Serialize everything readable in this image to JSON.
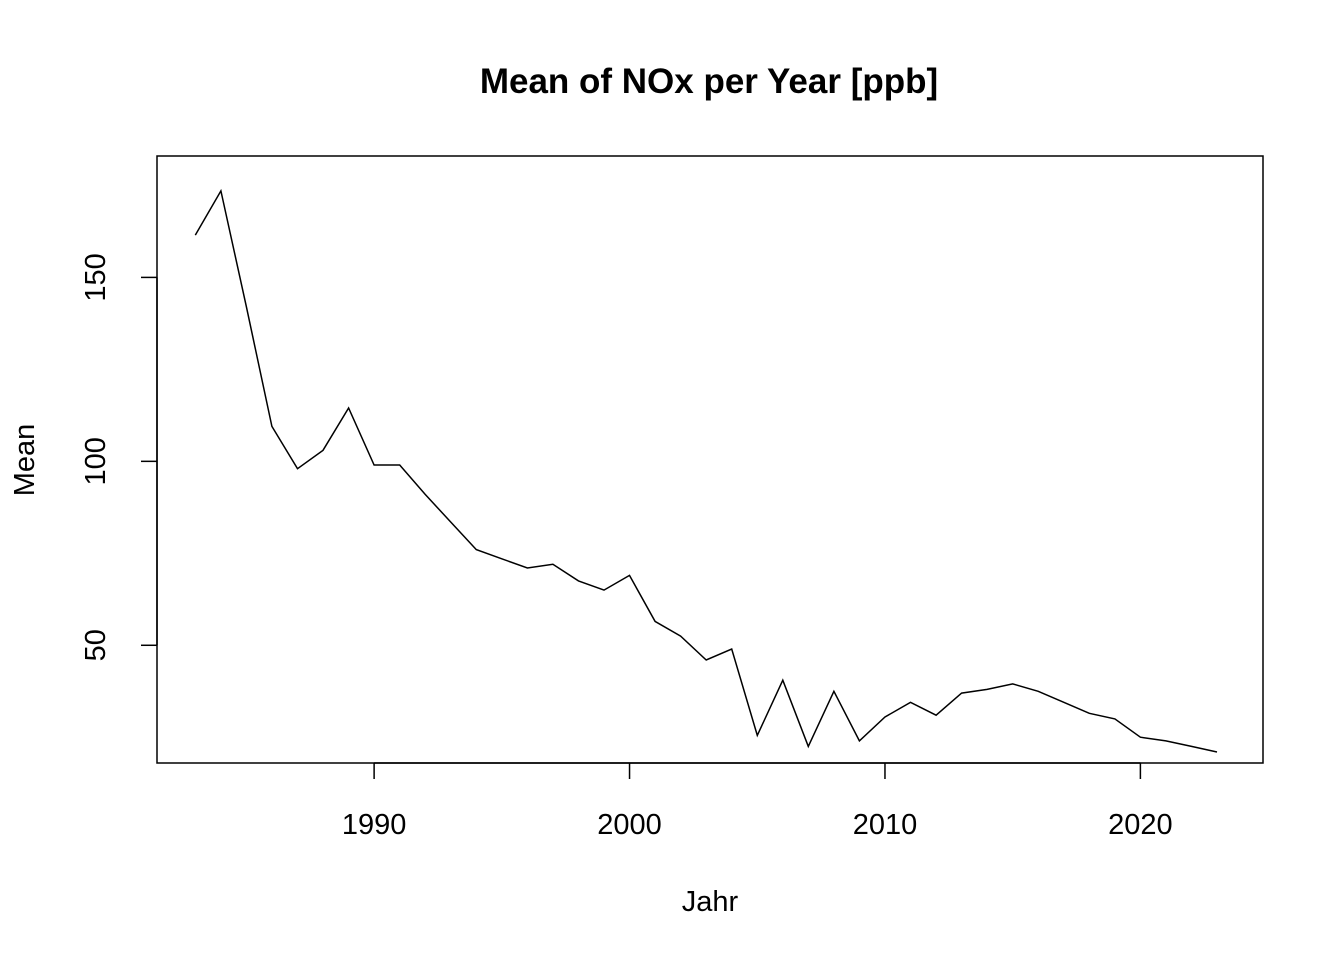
{
  "chart_data": {
    "type": "line",
    "title": "Mean of NOx per Year [ppb]",
    "xlabel": "Jahr",
    "ylabel": "Mean",
    "xlim": [
      1981.5,
      2024.8
    ],
    "ylim": [
      18,
      183
    ],
    "x_ticks": [
      1990,
      2000,
      2010,
      2020
    ],
    "y_ticks": [
      50,
      100,
      150
    ],
    "grid": false,
    "legend": "none",
    "line_color": "#000000",
    "series": [
      {
        "x": [
          1983,
          1984,
          1985,
          1986,
          1987,
          1988,
          1989,
          1990,
          1991,
          1992,
          1993,
          1994,
          1995,
          1996,
          1997,
          1998,
          1999,
          2000,
          2001,
          2002,
          2003,
          2004,
          2005,
          2006,
          2007,
          2008,
          2009,
          2010,
          2011,
          2012,
          2013,
          2014,
          2015,
          2016,
          2017,
          2018,
          2019,
          2020,
          2021,
          2022,
          2023
        ],
        "values": [
          161.5,
          173.5,
          142,
          109.5,
          98,
          103,
          114.5,
          99,
          99,
          91,
          83.5,
          76,
          73.5,
          71,
          72,
          67.5,
          65,
          69,
          56.5,
          52.5,
          46,
          49,
          25.5,
          40.5,
          22.5,
          37.5,
          24,
          30.5,
          34.5,
          31,
          37,
          38,
          39.5,
          37.5,
          34.5,
          31.5,
          30,
          25,
          24,
          22.5,
          21
        ]
      }
    ]
  }
}
